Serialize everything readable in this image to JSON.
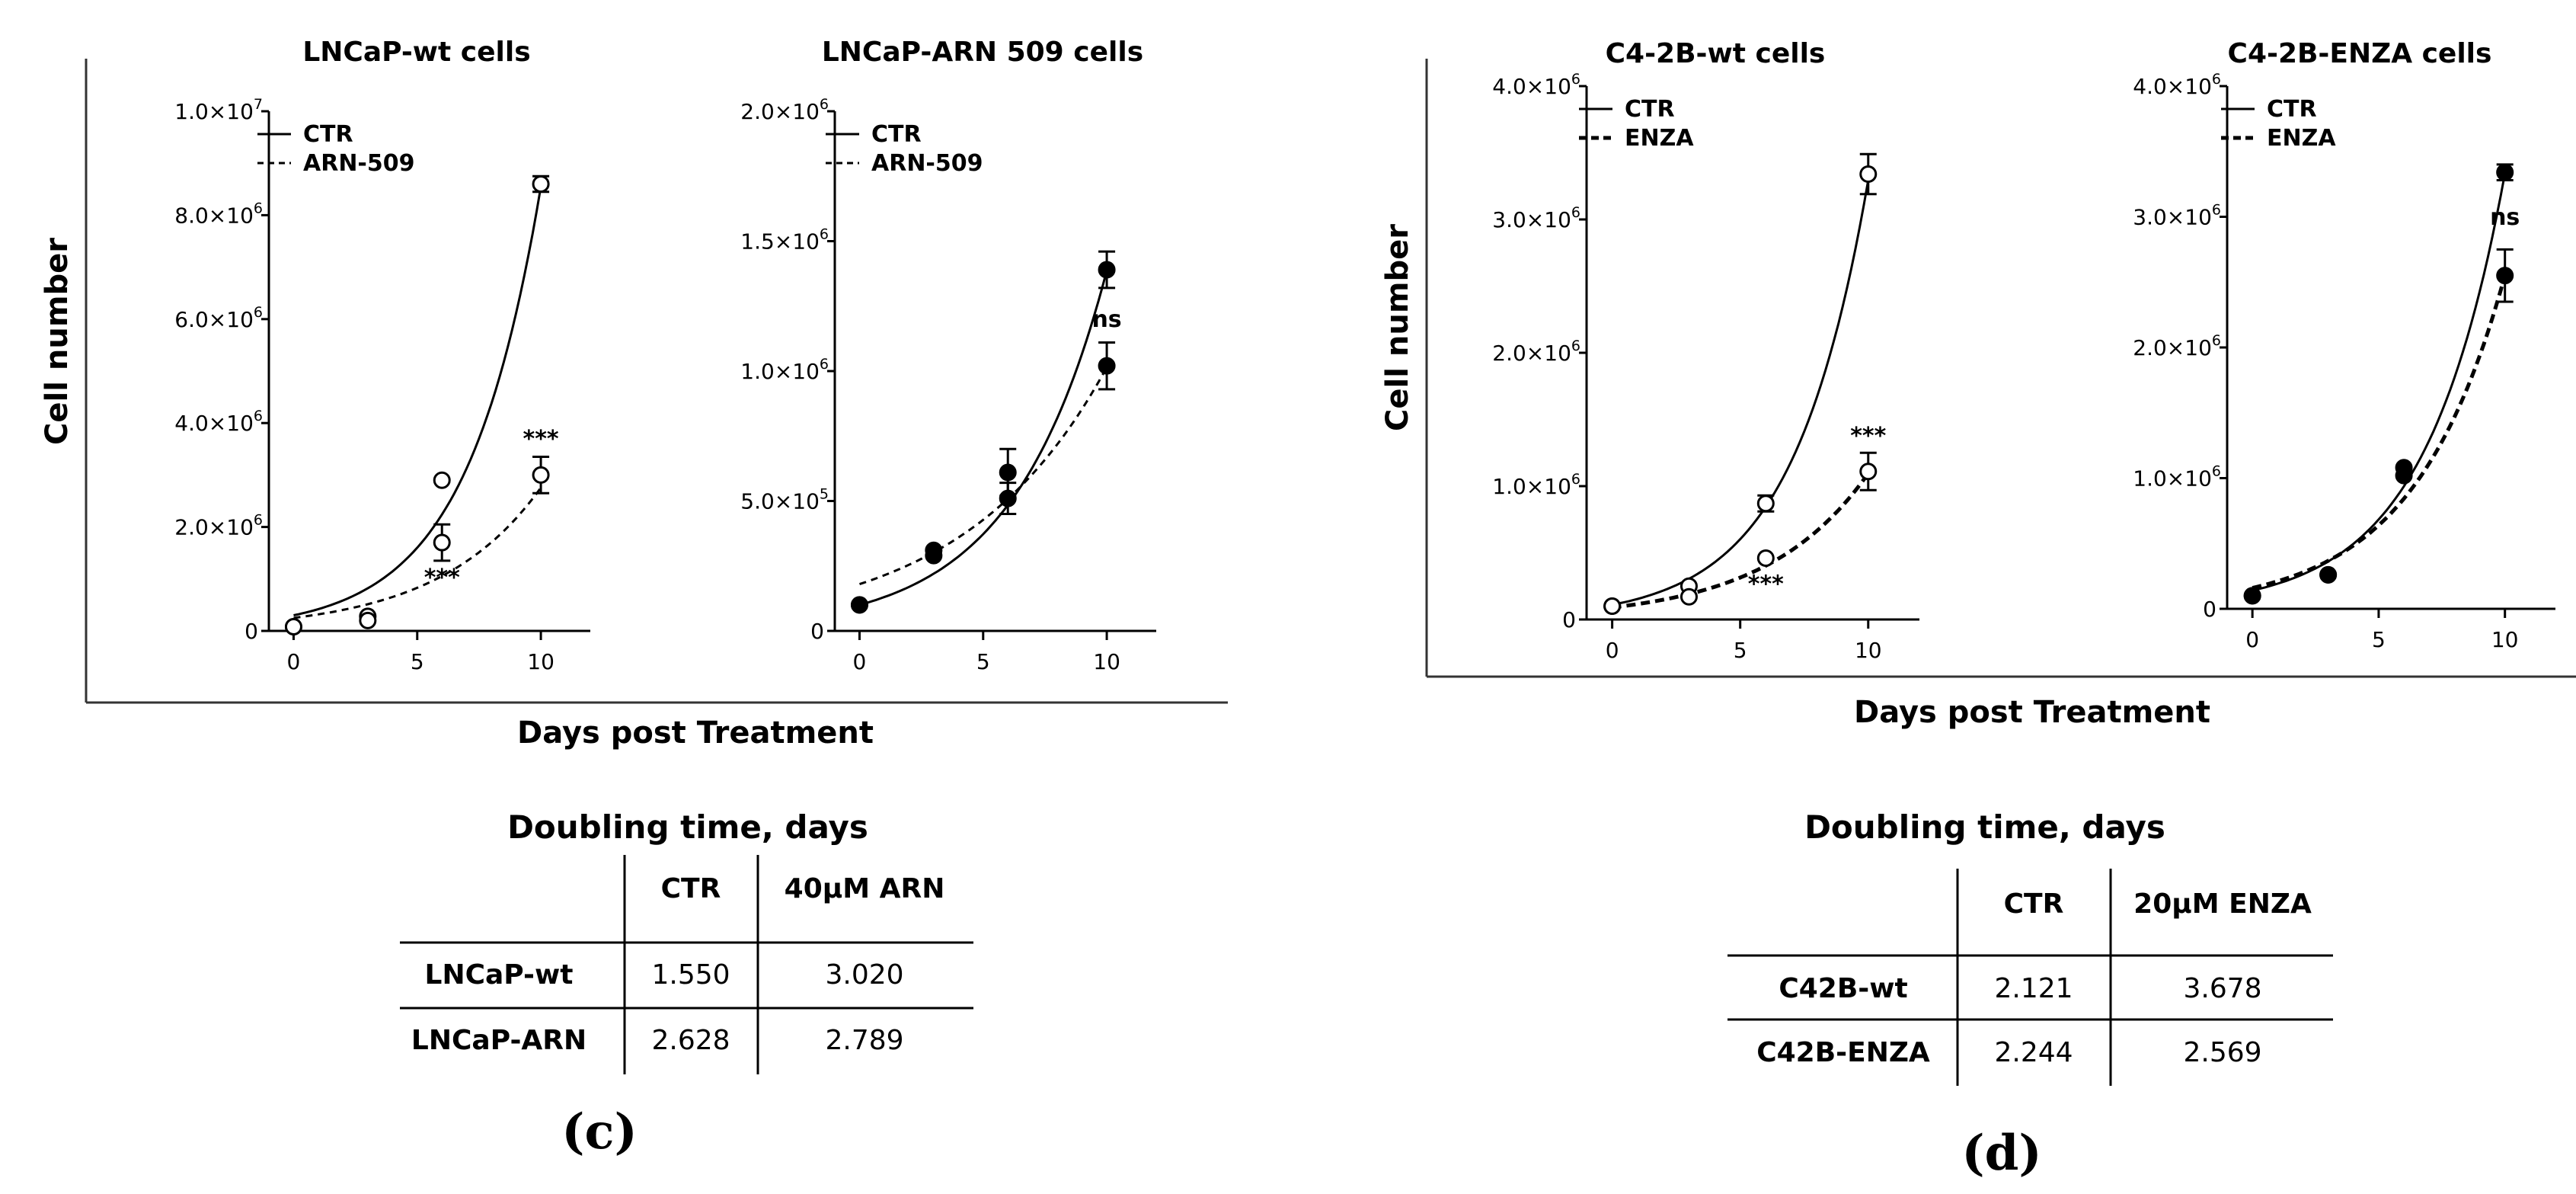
{
  "chart_data": [
    {
      "type": "line",
      "title": "LNCaP-wt cells",
      "ylim": [
        0,
        10000000
      ],
      "ytick_labels": [
        "0",
        "2.0×10",
        "4.0×10",
        "6.0×10",
        "8.0×10",
        "1.0×10"
      ],
      "ytick_exps": [
        "",
        "6",
        "6",
        "6",
        "6",
        "7"
      ],
      "ytick_values": [
        0,
        2000000,
        4000000,
        6000000,
        8000000,
        10000000
      ],
      "xlim": [
        -1,
        12
      ],
      "x_ticks": [
        0,
        5,
        10
      ],
      "series": [
        {
          "name": "CTR",
          "style": "solid",
          "marker": "open",
          "x": [
            0,
            3,
            6,
            10
          ],
          "y": [
            80000,
            280000,
            2900000,
            8600000
          ],
          "err": [
            0,
            0,
            0,
            150000
          ],
          "fit_a": 300000,
          "fit_k": 0.335
        },
        {
          "name": "ARN-509",
          "style": "dashed",
          "marker": "open",
          "x": [
            0,
            3,
            6,
            10
          ],
          "y": [
            80000,
            200000,
            1700000,
            3000000
          ],
          "err": [
            0,
            0,
            350000,
            350000
          ],
          "fit_a": 250000,
          "fit_k": 0.24
        }
      ],
      "annotations": [
        {
          "text": "***",
          "x": 10,
          "y": 3550000
        },
        {
          "text": "***",
          "x": 6,
          "y": 880000
        }
      ]
    },
    {
      "type": "line",
      "title": "LNCaP-ARN 509 cells",
      "ylim": [
        0,
        2000000
      ],
      "ytick_labels": [
        "0",
        "5.0×10",
        "1.0×10",
        "1.5×10",
        "2.0×10"
      ],
      "ytick_exps": [
        "",
        "5",
        "6",
        "6",
        "6"
      ],
      "ytick_values": [
        0,
        500000,
        1000000,
        1500000,
        2000000
      ],
      "xlim": [
        -1,
        12
      ],
      "x_ticks": [
        0,
        5,
        10
      ],
      "series": [
        {
          "name": "CTR",
          "style": "solid",
          "marker": "filled",
          "x": [
            0,
            3,
            6,
            10
          ],
          "y": [
            100000,
            290000,
            510000,
            1390000
          ],
          "err": [
            0,
            0,
            60000,
            70000
          ],
          "fit_a": 100000,
          "fit_k": 0.263
        },
        {
          "name": "ARN-509",
          "style": "dashed",
          "marker": "filled",
          "x": [
            0,
            3,
            6,
            10
          ],
          "y": [
            100000,
            310000,
            610000,
            1020000
          ],
          "err": [
            0,
            0,
            90000,
            90000
          ],
          "fit_a": 180000,
          "fit_k": 0.173
        }
      ],
      "annotations": [
        {
          "text": "ns",
          "x": 10,
          "y": 1170000
        }
      ]
    },
    {
      "type": "line",
      "title": "C4-2B-wt cells",
      "ylim": [
        0,
        4000000
      ],
      "ytick_labels": [
        "0",
        "1.0×10",
        "2.0×10",
        "3.0×10",
        "4.0×10"
      ],
      "ytick_exps": [
        "",
        "6",
        "6",
        "6",
        "6"
      ],
      "ytick_values": [
        0,
        1000000,
        2000000,
        3000000,
        4000000
      ],
      "xlim": [
        -1,
        12
      ],
      "x_ticks": [
        0,
        5,
        10
      ],
      "series": [
        {
          "name": "CTR",
          "style": "solid",
          "marker": "open",
          "x": [
            0,
            3,
            6,
            10
          ],
          "y": [
            100000,
            250000,
            870000,
            3340000
          ],
          "err": [
            0,
            0,
            60000,
            150000
          ],
          "fit_a": 110000,
          "fit_k": 0.34
        },
        {
          "name": "ENZA",
          "style": "bold-dashed",
          "marker": "open",
          "x": [
            0,
            3,
            6,
            10
          ],
          "y": [
            100000,
            170000,
            460000,
            1110000
          ],
          "err": [
            0,
            0,
            0,
            140000
          ],
          "fit_a": 90000,
          "fit_k": 0.25
        }
      ],
      "annotations": [
        {
          "text": "***",
          "x": 10,
          "y": 1320000
        },
        {
          "text": "***",
          "x": 6,
          "y": 210000
        }
      ]
    },
    {
      "type": "line",
      "title": "C4-2B-ENZA cells",
      "ylim": [
        0,
        4000000
      ],
      "ytick_labels": [
        "0",
        "1.0×10",
        "2.0×10",
        "3.0×10",
        "4.0×10"
      ],
      "ytick_exps": [
        "",
        "6",
        "6",
        "6",
        "6"
      ],
      "ytick_values": [
        0,
        1000000,
        2000000,
        3000000,
        4000000
      ],
      "xlim": [
        -1,
        12
      ],
      "x_ticks": [
        0,
        5,
        10
      ],
      "series": [
        {
          "name": "CTR",
          "style": "solid",
          "marker": "filled",
          "x": [
            0,
            3,
            6,
            10
          ],
          "y": [
            100000,
            260000,
            1080000,
            3340000
          ],
          "err": [
            0,
            0,
            0,
            60000
          ],
          "fit_a": 140000,
          "fit_k": 0.317
        },
        {
          "name": "ENZA",
          "style": "bold-dashed",
          "marker": "filled",
          "x": [
            0,
            3,
            6,
            10
          ],
          "y": [
            100000,
            260000,
            1020000,
            2550000
          ],
          "err": [
            0,
            0,
            0,
            200000
          ],
          "fit_a": 160000,
          "fit_k": 0.277
        }
      ],
      "annotations": [
        {
          "text": "ns",
          "x": 10,
          "y": 2940000
        }
      ]
    }
  ],
  "figure": {
    "ylabel": "Cell number",
    "xlabel": "Days post Treatment",
    "panel_c": "(c)",
    "panel_d": "(d)"
  },
  "tables": {
    "c": {
      "title": "Doubling time, days",
      "headers": [
        "CTR",
        "40μM ARN"
      ],
      "rows": [
        {
          "label": "LNCaP-wt",
          "values": [
            "1.550",
            "3.020"
          ]
        },
        {
          "label": "LNCaP-ARN",
          "values": [
            "2.628",
            "2.789"
          ]
        }
      ]
    },
    "d": {
      "title": "Doubling time, days",
      "headers": [
        "CTR",
        "20μM ENZA"
      ],
      "rows": [
        {
          "label": "C42B-wt",
          "values": [
            "2.121",
            "3.678"
          ]
        },
        {
          "label": "C42B-ENZA",
          "values": [
            "2.244",
            "2.569"
          ]
        }
      ]
    }
  }
}
